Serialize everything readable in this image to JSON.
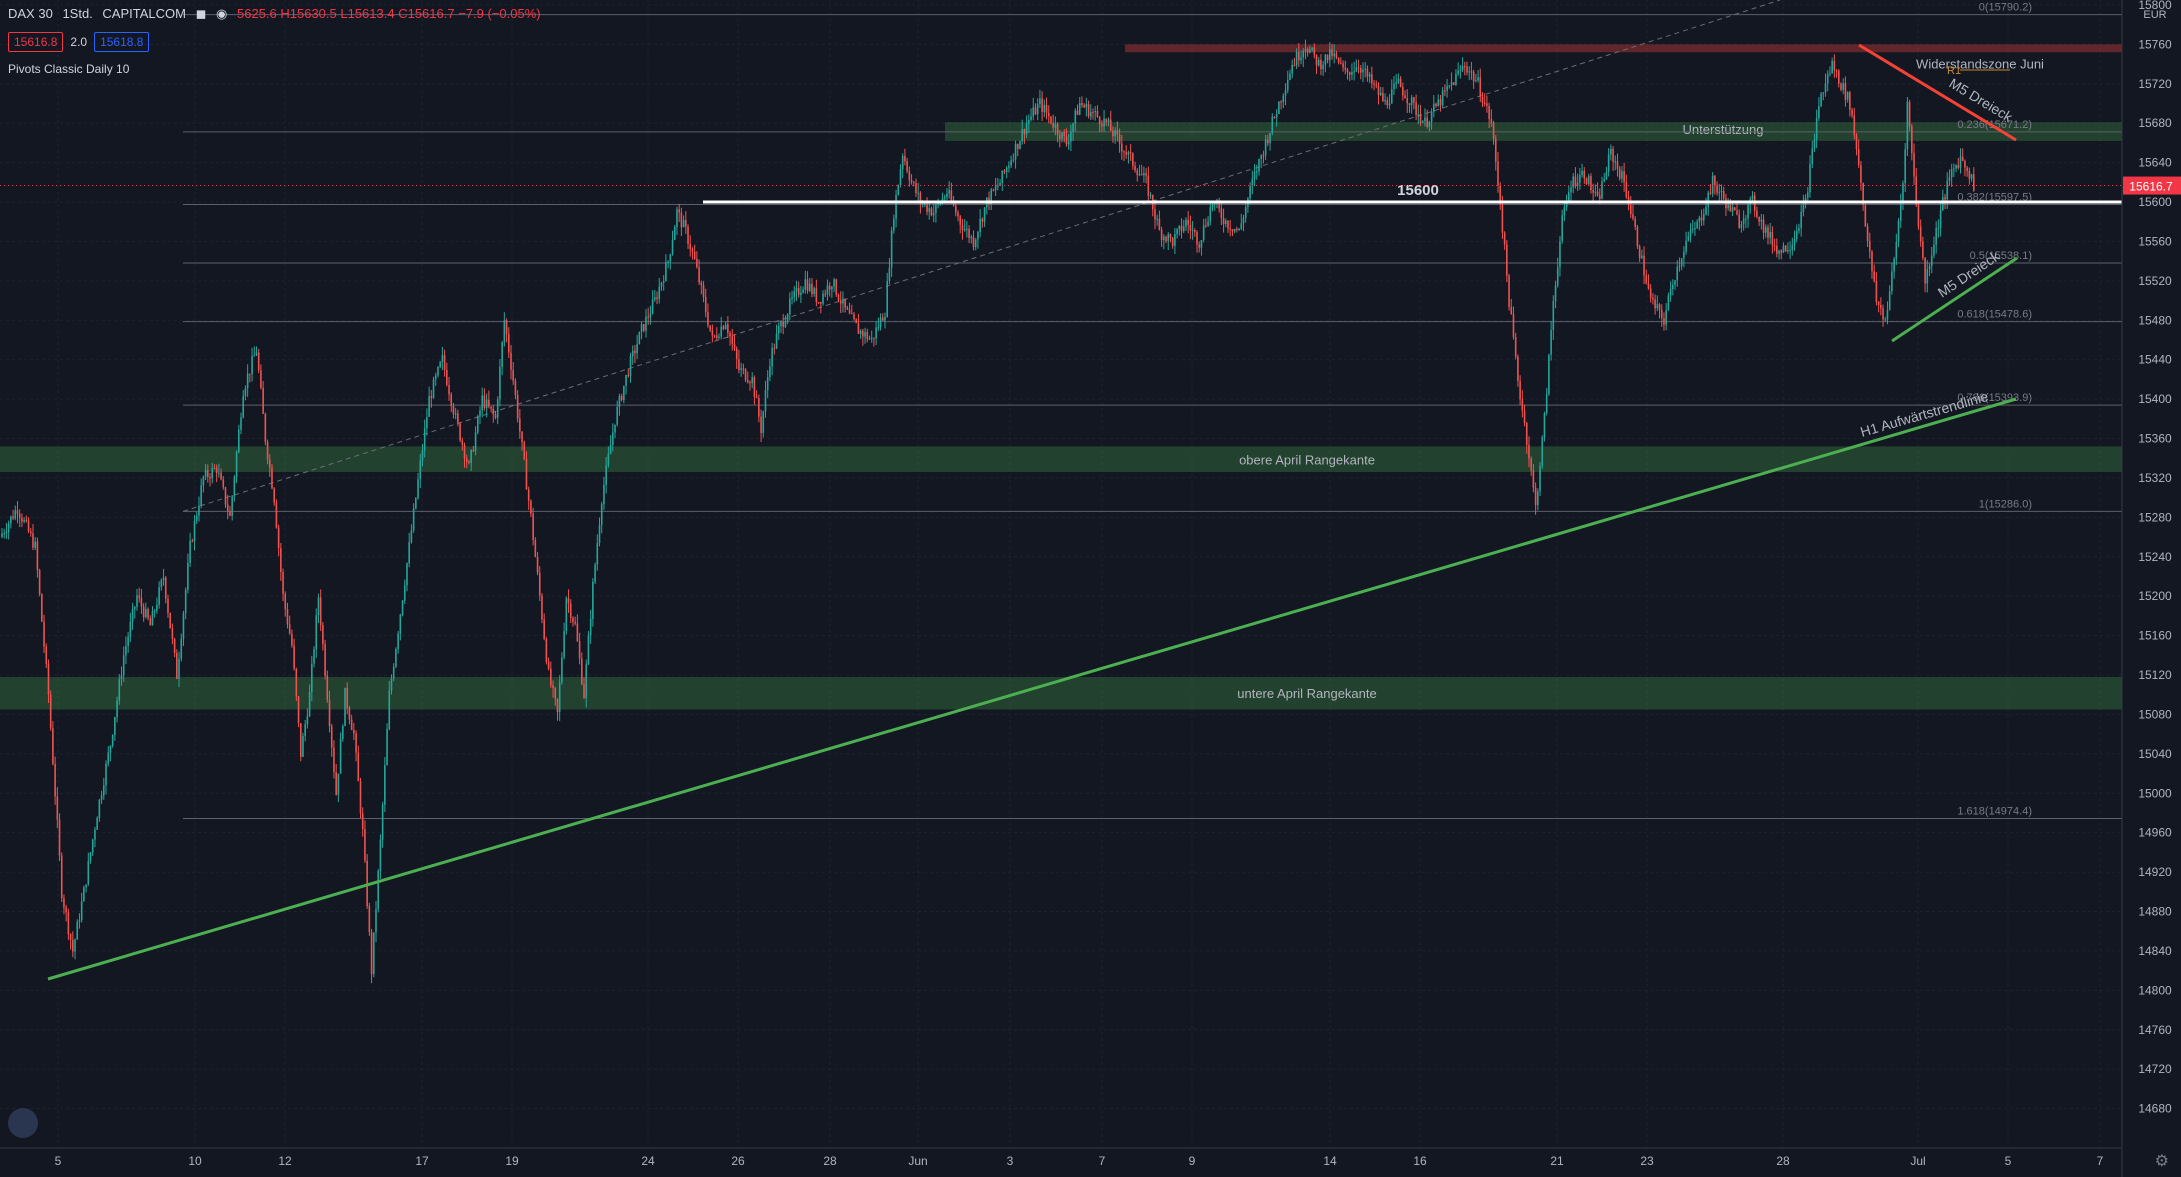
{
  "header": {
    "symbol": "DAX 30",
    "interval": "1Std.",
    "source": "CAPITALCOM",
    "ohlc": "5625.6 H15630.5 L15613.4 C15616.7 −7.9 (−0.05%)"
  },
  "quotes": {
    "sell": "15616.8",
    "spread": "2.0",
    "buy": "15618.8"
  },
  "indicator": "Pivots Classic Daily 10",
  "colors": {
    "background": "#131722",
    "up": "#26a69a",
    "down": "#ef5350",
    "trend_green": "#4caf50",
    "trend_red": "#f44336",
    "zone_green": "rgba(76,175,80,0.28)",
    "zone_red": "rgba(244,67,54,0.35)",
    "price_tag": "#f23645"
  },
  "chart_data": {
    "type": "candlestick",
    "y_axis": {
      "currency": "EUR",
      "ylim": [
        14640,
        15805
      ],
      "ticks": [
        15800,
        15760,
        15720,
        15680,
        15640,
        15600,
        15560,
        15520,
        15480,
        15440,
        15400,
        15360,
        15320,
        15280,
        15240,
        15200,
        15160,
        15120,
        15080,
        15040,
        15000,
        14960,
        14920,
        14880,
        14840,
        14800,
        14760,
        14720,
        14680
      ]
    },
    "x_axis": {
      "ticks": [
        "5",
        "10",
        "12",
        "17",
        "19",
        "24",
        "26",
        "28",
        "Jun",
        "3",
        "7",
        "9",
        "14",
        "16",
        "21",
        "23",
        "28",
        "Jul",
        "5",
        "7"
      ]
    },
    "current_price": "15616.7",
    "fib_levels": [
      {
        "label": "0(15790.2)",
        "value": 15790.2
      },
      {
        "label": "0.236(15671.2)",
        "value": 15671.2
      },
      {
        "label": "0.382(15597.5)",
        "value": 15597.5
      },
      {
        "label": "0.5(15538.1)",
        "value": 15538.1
      },
      {
        "label": "0.618(15478.6)",
        "value": 15478.6
      },
      {
        "label": "0.786(15393.9)",
        "value": 15393.9
      },
      {
        "label": "1(15286.0)",
        "value": 15286.0
      },
      {
        "label": "1.618(14974.4)",
        "value": 14974.4
      }
    ],
    "zones": [
      {
        "label": "Widerstandszone Juni",
        "from": 15752,
        "to": 15760,
        "color": "red"
      },
      {
        "label": "Unterstützung",
        "from": 15662,
        "to": 15681,
        "color": "green"
      },
      {
        "label": "obere April Rangekante",
        "from": 15326,
        "to": 15352,
        "color": "green"
      },
      {
        "label": "untere April Rangekante",
        "from": 15085,
        "to": 15118,
        "color": "green"
      }
    ],
    "level_15600": {
      "label": "15600",
      "value": 15600
    },
    "pivot_r1": {
      "label": "R1",
      "value": 15734
    },
    "annotations": [
      "M5 Dreieck",
      "M5 Dreieck",
      "H1 Aufwärtstrendlinie"
    ],
    "price_path": [
      [
        0,
        15260
      ],
      [
        8,
        15290
      ],
      [
        16,
        15250
      ],
      [
        22,
        15100
      ],
      [
        28,
        14900
      ],
      [
        33,
        14840
      ],
      [
        38,
        14900
      ],
      [
        44,
        14980
      ],
      [
        50,
        15050
      ],
      [
        56,
        15140
      ],
      [
        62,
        15200
      ],
      [
        68,
        15170
      ],
      [
        74,
        15220
      ],
      [
        80,
        15120
      ],
      [
        86,
        15250
      ],
      [
        92,
        15320
      ],
      [
        98,
        15330
      ],
      [
        104,
        15280
      ],
      [
        110,
        15410
      ],
      [
        116,
        15450
      ],
      [
        120,
        15360
      ],
      [
        124,
        15300
      ],
      [
        128,
        15200
      ],
      [
        132,
        15150
      ],
      [
        136,
        15040
      ],
      [
        140,
        15100
      ],
      [
        144,
        15200
      ],
      [
        148,
        15100
      ],
      [
        152,
        15000
      ],
      [
        156,
        15100
      ],
      [
        160,
        15060
      ],
      [
        164,
        14960
      ],
      [
        168,
        14820
      ],
      [
        172,
        14950
      ],
      [
        176,
        15100
      ],
      [
        182,
        15200
      ],
      [
        188,
        15300
      ],
      [
        194,
        15400
      ],
      [
        200,
        15440
      ],
      [
        206,
        15380
      ],
      [
        212,
        15330
      ],
      [
        218,
        15400
      ],
      [
        224,
        15380
      ],
      [
        228,
        15480
      ],
      [
        232,
        15420
      ],
      [
        236,
        15350
      ],
      [
        240,
        15280
      ],
      [
        244,
        15200
      ],
      [
        248,
        15120
      ],
      [
        252,
        15080
      ],
      [
        256,
        15200
      ],
      [
        260,
        15170
      ],
      [
        264,
        15100
      ],
      [
        268,
        15210
      ],
      [
        272,
        15300
      ],
      [
        278,
        15380
      ],
      [
        284,
        15430
      ],
      [
        290,
        15470
      ],
      [
        296,
        15500
      ],
      [
        302,
        15540
      ],
      [
        306,
        15590
      ],
      [
        310,
        15570
      ],
      [
        314,
        15540
      ],
      [
        318,
        15500
      ],
      [
        322,
        15460
      ],
      [
        328,
        15480
      ],
      [
        334,
        15430
      ],
      [
        340,
        15420
      ],
      [
        344,
        15370
      ],
      [
        348,
        15440
      ],
      [
        352,
        15470
      ],
      [
        358,
        15500
      ],
      [
        364,
        15520
      ],
      [
        370,
        15500
      ],
      [
        376,
        15520
      ],
      [
        382,
        15490
      ],
      [
        388,
        15470
      ],
      [
        394,
        15460
      ],
      [
        400,
        15490
      ],
      [
        404,
        15590
      ],
      [
        408,
        15650
      ],
      [
        412,
        15620
      ],
      [
        416,
        15600
      ],
      [
        422,
        15590
      ],
      [
        428,
        15610
      ],
      [
        434,
        15580
      ],
      [
        440,
        15560
      ],
      [
        446,
        15600
      ],
      [
        452,
        15620
      ],
      [
        458,
        15650
      ],
      [
        464,
        15680
      ],
      [
        470,
        15700
      ],
      [
        476,
        15680
      ],
      [
        482,
        15660
      ],
      [
        488,
        15700
      ],
      [
        494,
        15690
      ],
      [
        500,
        15680
      ],
      [
        506,
        15660
      ],
      [
        512,
        15640
      ],
      [
        518,
        15620
      ],
      [
        524,
        15570
      ],
      [
        530,
        15560
      ],
      [
        536,
        15580
      ],
      [
        542,
        15560
      ],
      [
        548,
        15600
      ],
      [
        554,
        15580
      ],
      [
        560,
        15570
      ],
      [
        566,
        15620
      ],
      [
        572,
        15660
      ],
      [
        578,
        15700
      ],
      [
        584,
        15740
      ],
      [
        590,
        15760
      ],
      [
        596,
        15740
      ],
      [
        602,
        15750
      ],
      [
        608,
        15730
      ],
      [
        614,
        15740
      ],
      [
        620,
        15720
      ],
      [
        626,
        15700
      ],
      [
        632,
        15720
      ],
      [
        638,
        15700
      ],
      [
        644,
        15680
      ],
      [
        650,
        15700
      ],
      [
        656,
        15720
      ],
      [
        662,
        15740
      ],
      [
        668,
        15720
      ],
      [
        674,
        15680
      ],
      [
        678,
        15600
      ],
      [
        682,
        15500
      ],
      [
        686,
        15420
      ],
      [
        690,
        15360
      ],
      [
        694,
        15290
      ],
      [
        698,
        15380
      ],
      [
        702,
        15500
      ],
      [
        706,
        15580
      ],
      [
        710,
        15620
      ],
      [
        716,
        15630
      ],
      [
        722,
        15600
      ],
      [
        728,
        15650
      ],
      [
        734,
        15620
      ],
      [
        740,
        15560
      ],
      [
        746,
        15500
      ],
      [
        752,
        15480
      ],
      [
        756,
        15520
      ],
      [
        762,
        15560
      ],
      [
        768,
        15580
      ],
      [
        774,
        15620
      ],
      [
        780,
        15600
      ],
      [
        786,
        15580
      ],
      [
        792,
        15600
      ],
      [
        798,
        15570
      ],
      [
        804,
        15550
      ],
      [
        810,
        15560
      ],
      [
        816,
        15600
      ],
      [
        822,
        15700
      ],
      [
        828,
        15740
      ],
      [
        832,
        15720
      ],
      [
        836,
        15700
      ],
      [
        840,
        15640
      ],
      [
        844,
        15560
      ],
      [
        848,
        15500
      ],
      [
        852,
        15480
      ],
      [
        856,
        15540
      ],
      [
        860,
        15620
      ],
      [
        862,
        15700
      ],
      [
        866,
        15600
      ],
      [
        870,
        15520
      ],
      [
        874,
        15560
      ],
      [
        878,
        15600
      ],
      [
        882,
        15630
      ],
      [
        886,
        15645
      ],
      [
        890,
        15630
      ],
      [
        892,
        15617
      ]
    ]
  }
}
